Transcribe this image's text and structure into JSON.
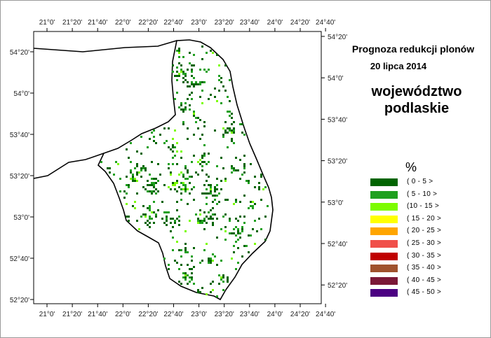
{
  "map": {
    "title": "Prognoza redukcji plonów",
    "date": "20 lipca 2014",
    "region_line1": "województwo",
    "region_line2": "podlaskie",
    "lon_labels": [
      "21°0'",
      "21°20'",
      "21°40'",
      "22°0'",
      "22°20'",
      "22°40'",
      "23°0'",
      "23°20'",
      "23°40'",
      "24°0'",
      "24°20'",
      "24°40'"
    ],
    "lat_labels_left": [
      "54°20'",
      "54°0'",
      "53°40'",
      "53°20'",
      "53°0'",
      "52°40'",
      "52°20'"
    ],
    "lat_labels_right": [
      "54°20'",
      "54°0'",
      "53°40'",
      "53°20'",
      "53°0'",
      "52°40'",
      "52°20'"
    ]
  },
  "legend": {
    "unit": "%",
    "items": [
      {
        "label": "( 0 - 5 >",
        "color": "#006400"
      },
      {
        "label": "( 5 - 10 >",
        "color": "#1fa01f"
      },
      {
        "label": "(10 - 15 >",
        "color": "#7cfc00"
      },
      {
        "label": "( 15 - 20 >",
        "color": "#ffff00"
      },
      {
        "label": "( 20 - 25 >",
        "color": "#ffa500"
      },
      {
        "label": "( 25 - 30 >",
        "color": "#f0504a"
      },
      {
        "label": "( 30 - 35 >",
        "color": "#c00000"
      },
      {
        "label": "( 35 - 40 >",
        "color": "#a0522d"
      },
      {
        "label": "( 40 - 45 >",
        "color": "#7b1838"
      },
      {
        "label": "( 45 - 50 >",
        "color": "#4b0082"
      }
    ]
  }
}
